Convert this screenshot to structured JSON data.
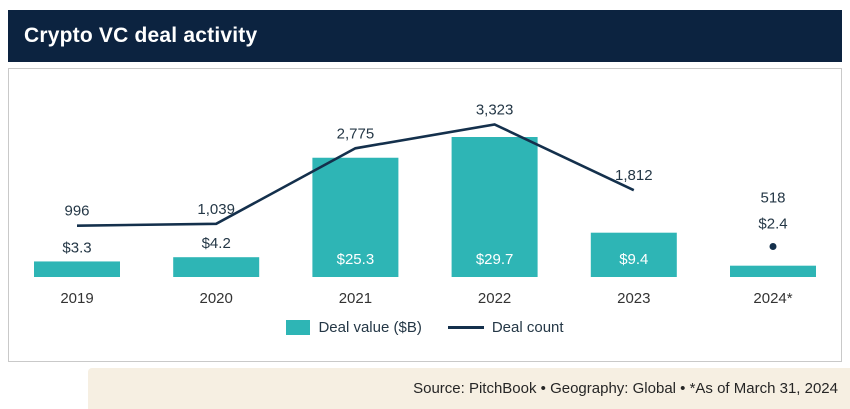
{
  "header": {
    "title": "Crypto VC deal activity"
  },
  "colors": {
    "navy": "#0c2340",
    "teal": "#2eb5b5",
    "footer_background": "#f6efe2",
    "label_text": "#243746"
  },
  "chart_data": {
    "type": "combo",
    "title": "Crypto VC deal activity",
    "categories": [
      "2019",
      "2020",
      "2021",
      "2022",
      "2023",
      "2024*"
    ],
    "series": [
      {
        "name": "Deal value ($B)",
        "type": "bar",
        "values": [
          3.3,
          4.2,
          25.3,
          29.7,
          9.4,
          2.4
        ],
        "labels": [
          "$3.3",
          "$4.2",
          "$25.3",
          "$29.7",
          "$9.4",
          "$2.4"
        ],
        "color": "#2eb5b5"
      },
      {
        "name": "Deal count",
        "type": "line",
        "values": [
          996,
          1039,
          2775,
          3323,
          1812,
          518
        ],
        "labels": [
          "996",
          "1,039",
          "2,775",
          "3,323",
          "1,812",
          "518"
        ],
        "color": "#14304c",
        "line_ends_at_index": 4,
        "last_point_dot_only": true
      }
    ],
    "xlabel": "",
    "ylabel": "",
    "grid": false,
    "legend_position": "bottom"
  },
  "footer": {
    "text": "Source: PitchBook  •  Geography: Global  •  *As of March 31, 2024"
  }
}
